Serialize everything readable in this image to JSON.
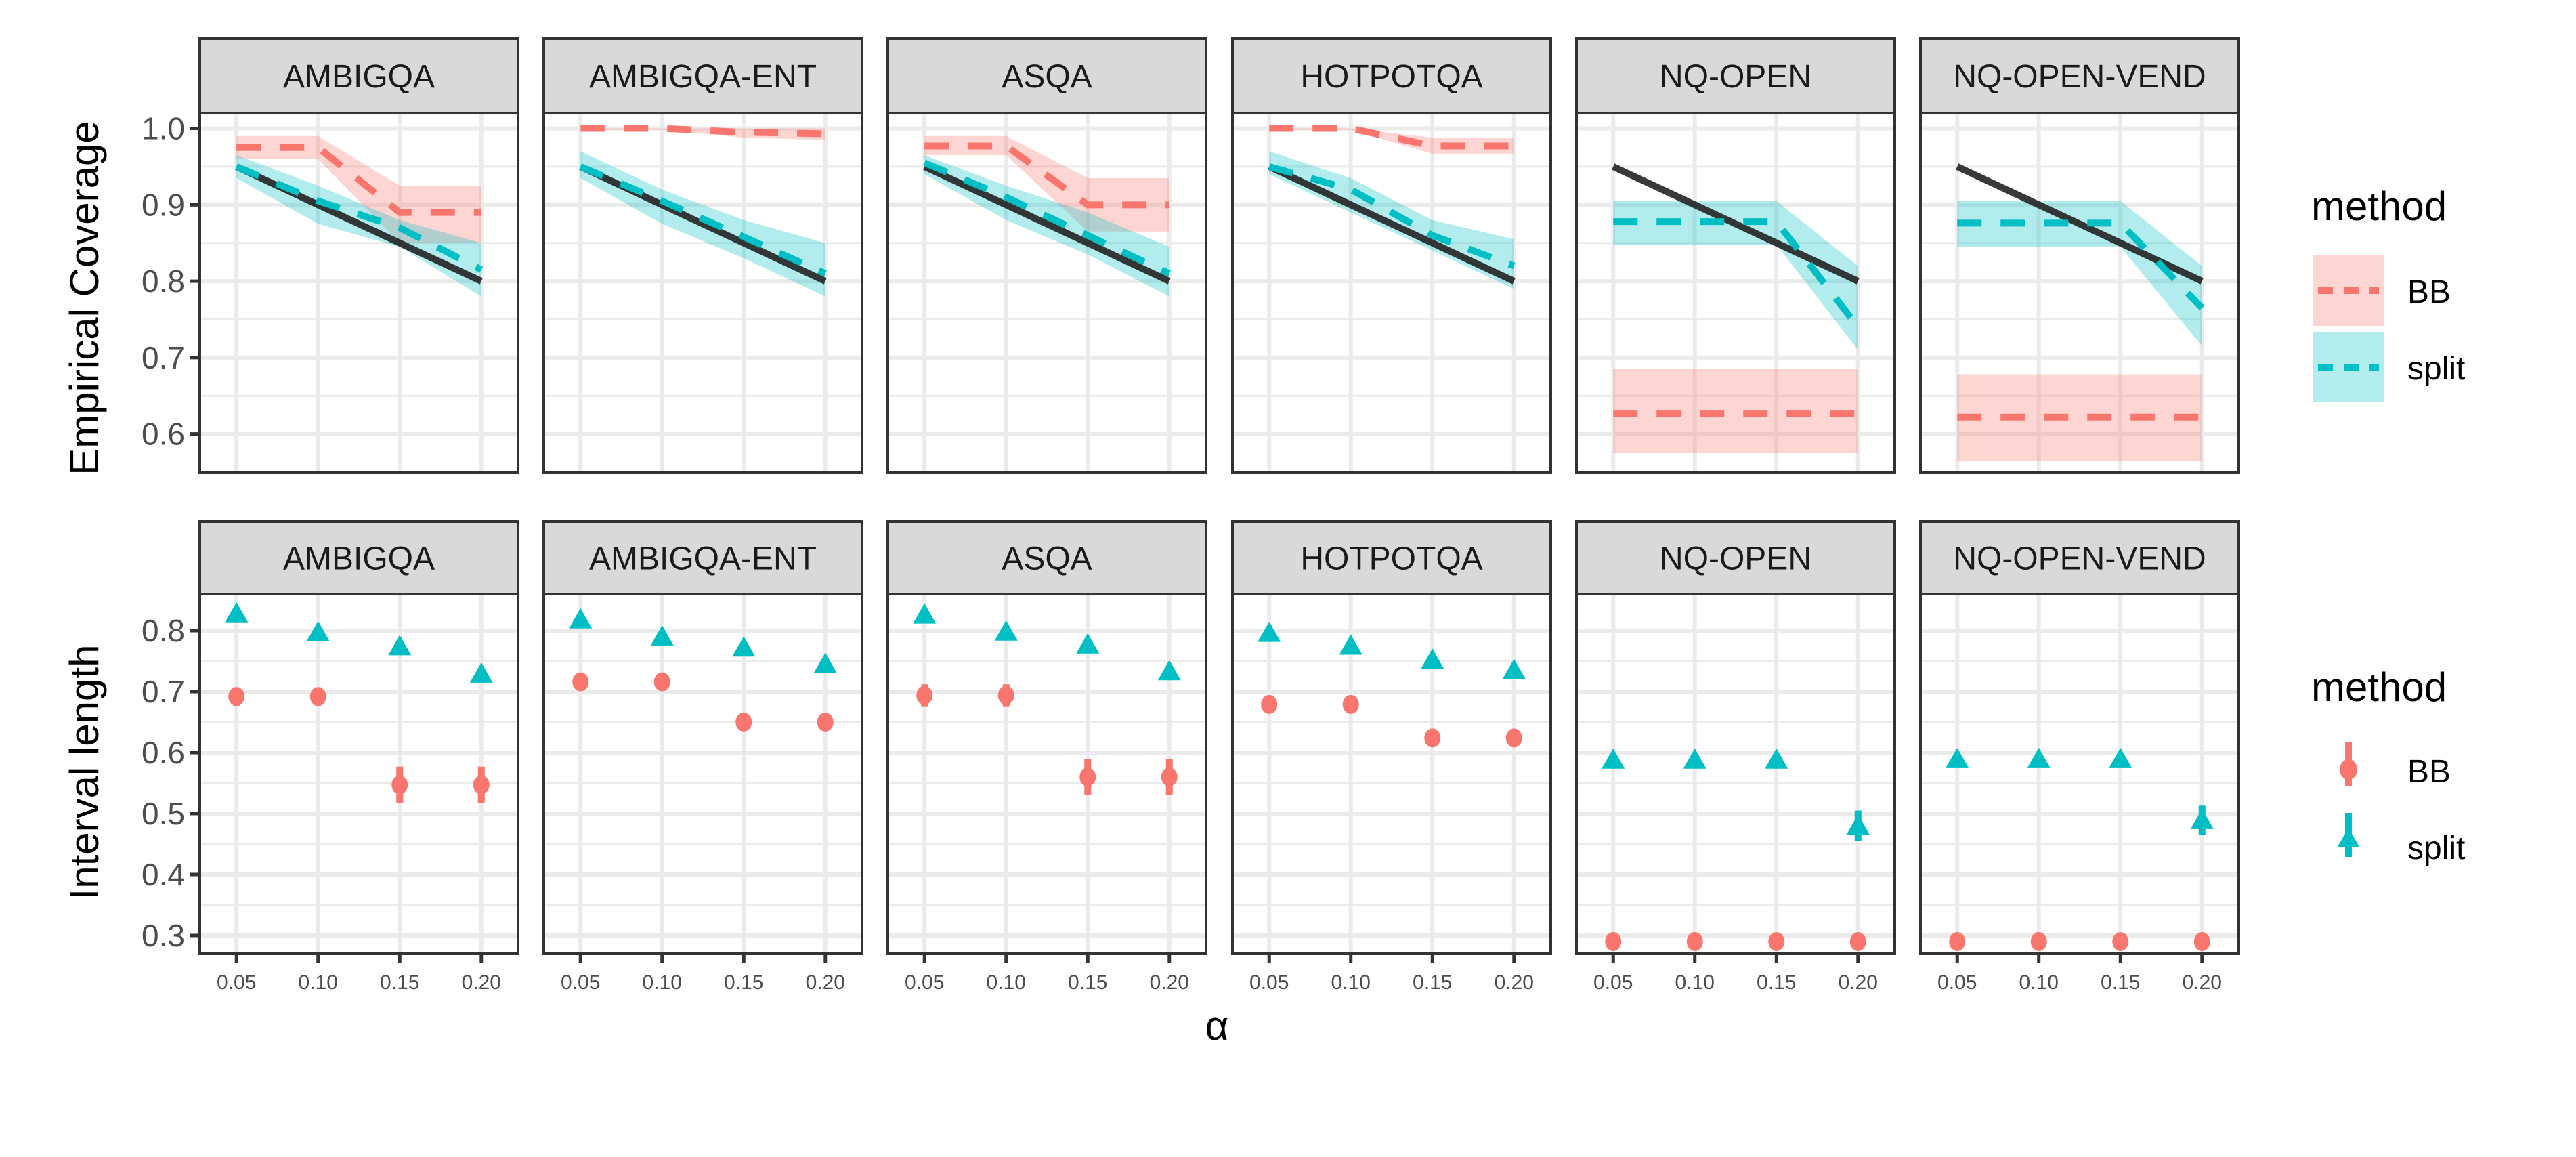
{
  "chart_data": [
    {
      "type": "line",
      "ylabel": "Empirical Coverage",
      "xlabel": "α",
      "ylim": [
        0.55,
        1.02
      ],
      "yticks": [
        "0.6",
        "0.7",
        "0.8",
        "0.9",
        "1.0"
      ],
      "ytick_values": [
        0.6,
        0.7,
        0.8,
        0.9,
        1.0
      ],
      "x": [
        0.05,
        0.1,
        0.15,
        0.2
      ],
      "reference_line": {
        "name": "nominal 1-α",
        "color": "#222222",
        "values": [
          0.95,
          0.9,
          0.85,
          0.8
        ]
      },
      "panels": [
        {
          "name": "AMBIGQA",
          "series": [
            {
              "name": "BB",
              "values": [
                0.975,
                0.975,
                0.89,
                0.89
              ],
              "lower": [
                0.96,
                0.96,
                0.85,
                0.85
              ],
              "upper": [
                0.99,
                0.99,
                0.925,
                0.925
              ]
            },
            {
              "name": "split",
              "values": [
                0.95,
                0.905,
                0.87,
                0.815
              ],
              "lower": [
                0.935,
                0.875,
                0.845,
                0.78
              ],
              "upper": [
                0.965,
                0.925,
                0.88,
                0.85
              ]
            }
          ]
        },
        {
          "name": "AMBIGQA-ENT",
          "series": [
            {
              "name": "BB",
              "values": [
                1.0,
                1.0,
                0.995,
                0.993
              ],
              "lower": [
                0.998,
                0.998,
                0.988,
                0.985
              ],
              "upper": [
                1.0,
                1.0,
                1.0,
                1.0
              ]
            },
            {
              "name": "split",
              "values": [
                0.95,
                0.905,
                0.858,
                0.81
              ],
              "lower": [
                0.935,
                0.875,
                0.83,
                0.78
              ],
              "upper": [
                0.97,
                0.92,
                0.88,
                0.85
              ]
            }
          ]
        },
        {
          "name": "ASQA",
          "series": [
            {
              "name": "BB",
              "values": [
                0.977,
                0.977,
                0.9,
                0.9
              ],
              "lower": [
                0.965,
                0.965,
                0.865,
                0.865
              ],
              "upper": [
                0.99,
                0.99,
                0.935,
                0.935
              ]
            },
            {
              "name": "split",
              "values": [
                0.955,
                0.91,
                0.86,
                0.81
              ],
              "lower": [
                0.94,
                0.88,
                0.835,
                0.78
              ],
              "upper": [
                0.965,
                0.925,
                0.89,
                0.845
              ]
            }
          ]
        },
        {
          "name": "HOTPOTQA",
          "series": [
            {
              "name": "BB",
              "values": [
                1.0,
                1.0,
                0.977,
                0.977
              ],
              "lower": [
                0.998,
                0.998,
                0.967,
                0.967
              ],
              "upper": [
                1.0,
                1.0,
                0.988,
                0.988
              ]
            },
            {
              "name": "split",
              "values": [
                0.95,
                0.92,
                0.86,
                0.82
              ],
              "lower": [
                0.94,
                0.89,
                0.84,
                0.79
              ],
              "upper": [
                0.97,
                0.935,
                0.88,
                0.855
              ]
            }
          ]
        },
        {
          "name": "NQ-OPEN",
          "series": [
            {
              "name": "BB",
              "values": [
                0.627,
                0.627,
                0.627,
                0.627
              ],
              "lower": [
                0.575,
                0.575,
                0.575,
                0.575
              ],
              "upper": [
                0.685,
                0.685,
                0.685,
                0.685
              ]
            },
            {
              "name": "split",
              "values": [
                0.878,
                0.878,
                0.878,
                0.74
              ],
              "lower": [
                0.848,
                0.848,
                0.848,
                0.71
              ],
              "upper": [
                0.905,
                0.905,
                0.905,
                0.82
              ]
            }
          ]
        },
        {
          "name": "NQ-OPEN-VEND",
          "series": [
            {
              "name": "BB",
              "values": [
                0.622,
                0.622,
                0.622,
                0.622
              ],
              "lower": [
                0.565,
                0.565,
                0.565,
                0.565
              ],
              "upper": [
                0.678,
                0.678,
                0.678,
                0.678
              ]
            },
            {
              "name": "split",
              "values": [
                0.876,
                0.876,
                0.876,
                0.765
              ],
              "lower": [
                0.845,
                0.845,
                0.845,
                0.715
              ],
              "upper": [
                0.905,
                0.905,
                0.905,
                0.82
              ]
            }
          ]
        }
      ]
    },
    {
      "type": "scatter",
      "ylabel": "Interval length",
      "xlabel": "α",
      "ylim": [
        0.27,
        0.86
      ],
      "yticks": [
        "0.3",
        "0.4",
        "0.5",
        "0.6",
        "0.7",
        "0.8"
      ],
      "ytick_values": [
        0.3,
        0.4,
        0.5,
        0.6,
        0.7,
        0.8
      ],
      "x": [
        0.05,
        0.1,
        0.15,
        0.2
      ],
      "xticks": [
        "0.05",
        "0.10",
        "0.15",
        "0.20"
      ],
      "panels": [
        {
          "name": "AMBIGQA",
          "series": [
            {
              "name": "BB",
              "values": [
                0.692,
                0.692,
                0.547,
                0.547
              ],
              "err": [
                0.015,
                0.015,
                0.03,
                0.03
              ]
            },
            {
              "name": "split",
              "values": [
                0.828,
                0.797,
                0.774,
                0.729
              ],
              "err": [
                0,
                0,
                0,
                0
              ]
            }
          ]
        },
        {
          "name": "AMBIGQA-ENT",
          "series": [
            {
              "name": "BB",
              "values": [
                0.716,
                0.716,
                0.65,
                0.65
              ],
              "err": [
                0,
                0,
                0,
                0
              ]
            },
            {
              "name": "split",
              "values": [
                0.818,
                0.79,
                0.772,
                0.745
              ],
              "err": [
                0,
                0,
                0,
                0
              ]
            }
          ]
        },
        {
          "name": "ASQA",
          "series": [
            {
              "name": "BB",
              "values": [
                0.694,
                0.694,
                0.56,
                0.56
              ],
              "err": [
                0.018,
                0.018,
                0.03,
                0.03
              ]
            },
            {
              "name": "split",
              "values": [
                0.826,
                0.798,
                0.777,
                0.733
              ],
              "err": [
                0,
                0,
                0,
                0
              ]
            }
          ]
        },
        {
          "name": "HOTPOTQA",
          "series": [
            {
              "name": "BB",
              "values": [
                0.679,
                0.679,
                0.624,
                0.624
              ],
              "err": [
                0,
                0,
                0,
                0
              ]
            },
            {
              "name": "split",
              "values": [
                0.796,
                0.775,
                0.752,
                0.735
              ],
              "err": [
                0,
                0,
                0,
                0
              ]
            }
          ]
        },
        {
          "name": "NQ-OPEN",
          "series": [
            {
              "name": "BB",
              "values": [
                0.29,
                0.29,
                0.29,
                0.29
              ],
              "err": [
                0,
                0,
                0,
                0
              ]
            },
            {
              "name": "split",
              "values": [
                0.588,
                0.588,
                0.588,
                0.48
              ],
              "err": [
                0,
                0,
                0,
                0.025
              ]
            }
          ]
        },
        {
          "name": "NQ-OPEN-VEND",
          "series": [
            {
              "name": "BB",
              "values": [
                0.29,
                0.29,
                0.29,
                0.29
              ],
              "err": [
                0,
                0,
                0,
                0
              ]
            },
            {
              "name": "split",
              "values": [
                0.589,
                0.589,
                0.589,
                0.489
              ],
              "err": [
                0,
                0,
                0,
                0.024
              ]
            }
          ]
        }
      ]
    }
  ],
  "legend": {
    "title": "method",
    "placement": "right",
    "entries": [
      {
        "name": "BB",
        "color": "#F8766D"
      },
      {
        "name": "split",
        "color": "#00BFC4"
      }
    ]
  },
  "colors": {
    "BB": "#F8766D",
    "split": "#00BFC4",
    "reference": "#222222",
    "strip": "#D9D9D9",
    "grid": "#EBEBEB"
  }
}
